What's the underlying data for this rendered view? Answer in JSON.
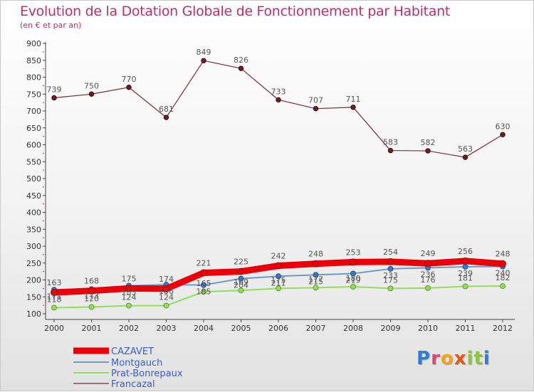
{
  "header": {
    "title": "Evolution de la Dotation Globale de Fonctionnement par Habitant",
    "subtitle": "(en € et par an)"
  },
  "logo": {
    "text": "Proxiti",
    "letters": [
      "P",
      "r",
      "o",
      "x",
      "i",
      "t",
      "i"
    ],
    "colors": [
      "#2e7fd0",
      "#e0457a",
      "#f2a21c",
      "#e05a1c",
      "#8cc63f",
      "#8cc63f",
      "#2e7fd0"
    ]
  },
  "chart_data": {
    "type": "line",
    "title": "Evolution de la Dotation Globale de Fonctionnement par Habitant",
    "subtitle": "(en € et par an)",
    "xlabel": "",
    "ylabel": "",
    "x": [
      "2000",
      "2001",
      "2002",
      "2003",
      "2004",
      "2005",
      "2006",
      "2007",
      "2008",
      "2009",
      "2010",
      "2011",
      "2012"
    ],
    "ylim": [
      100,
      900
    ],
    "yticks": [
      100,
      150,
      200,
      250,
      300,
      350,
      400,
      450,
      500,
      550,
      600,
      650,
      700,
      750,
      800,
      850,
      900
    ],
    "grid": false,
    "legend_position": "bottom-left",
    "series": [
      {
        "name": "CAZAVET",
        "color": "#e8000b",
        "values": [
          163,
          168,
          175,
          174,
          221,
          225,
          242,
          248,
          253,
          254,
          249,
          256,
          248
        ]
      },
      {
        "name": "Montgauch",
        "color": "#6f9ac4",
        "values": [
          171,
          173,
          183,
          186,
          185,
          204,
          211,
          215,
          219,
          233,
          236,
          239,
          240
        ]
      },
      {
        "name": "Prat-Bonrepaux",
        "color": "#90de5a",
        "values": [
          118,
          120,
          124,
          124,
          165,
          169,
          175,
          177,
          180,
          175,
          176,
          181,
          182
        ]
      },
      {
        "name": "Francazal",
        "color": "#7a2a33",
        "values": [
          739,
          750,
          770,
          681,
          849,
          826,
          733,
          707,
          711,
          583,
          582,
          563,
          630
        ]
      }
    ]
  }
}
